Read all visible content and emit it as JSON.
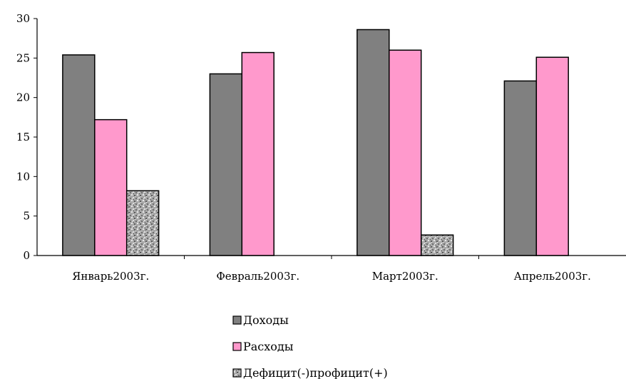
{
  "chart_data": {
    "type": "bar",
    "categories": [
      "Январь2003г.",
      "Февраль2003г.",
      "Март2003г.",
      "Апрель2003г."
    ],
    "series": [
      {
        "name": "Доходы",
        "values": [
          25.4,
          23.0,
          28.6,
          22.1
        ],
        "color": "#808080"
      },
      {
        "name": "Расходы",
        "values": [
          17.2,
          25.7,
          26.0,
          25.1
        ],
        "color": "#ff99cc"
      },
      {
        "name": "Дефицит(-)профицит(+)",
        "values": [
          8.2,
          null,
          2.6,
          null
        ],
        "color": "#b0b0b0",
        "pattern": "granite"
      }
    ],
    "ylim": [
      0,
      30
    ],
    "yticks": [
      0,
      5,
      10,
      15,
      20,
      25,
      30
    ],
    "grid": false,
    "legend_position": "bottom"
  }
}
